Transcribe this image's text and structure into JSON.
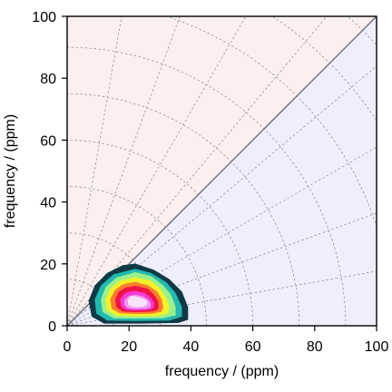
{
  "chart_data": {
    "type": "contour",
    "xlabel": "frequency / (ppm)",
    "ylabel": "frequency / (ppm)",
    "xlim": [
      0,
      100
    ],
    "ylim": [
      0,
      100
    ],
    "xticks": [
      0,
      20,
      40,
      60,
      80,
      100
    ],
    "yticks": [
      0,
      20,
      40,
      60,
      80,
      100
    ],
    "background": {
      "upper_left": "#fbeff0",
      "lower_right": "#eeeefc"
    },
    "diagonal_color": "#77707f",
    "polar_grid": {
      "radii": [
        15,
        30,
        45,
        60,
        75,
        90,
        105,
        120,
        135
      ],
      "angles_deg": [
        10,
        20,
        30,
        40,
        50,
        60,
        70,
        80
      ]
    },
    "contours": [
      {
        "level": 1,
        "color": "#0f3a46",
        "points": [
          [
            22,
            20
          ],
          [
            28,
            18
          ],
          [
            33,
            15
          ],
          [
            37,
            11
          ],
          [
            39,
            6
          ],
          [
            39,
            2
          ],
          [
            36,
            1
          ],
          [
            24,
            0.8
          ],
          [
            12,
            0.8
          ],
          [
            8,
            3
          ],
          [
            7,
            8
          ],
          [
            9,
            13
          ],
          [
            13,
            17
          ],
          [
            18,
            19.5
          ]
        ]
      },
      {
        "level": 2,
        "color": "#22b9b0",
        "points": [
          [
            22,
            18.3
          ],
          [
            27,
            17
          ],
          [
            32,
            14
          ],
          [
            35,
            10.5
          ],
          [
            37,
            6
          ],
          [
            37,
            3
          ],
          [
            33,
            1.8
          ],
          [
            22,
            1.6
          ],
          [
            13,
            1.8
          ],
          [
            9.5,
            4
          ],
          [
            9,
            8.5
          ],
          [
            11,
            13
          ],
          [
            15,
            16.5
          ]
        ]
      },
      {
        "level": 3,
        "color": "#9bf08c",
        "points": [
          [
            22,
            17.2
          ],
          [
            27,
            16
          ],
          [
            31,
            13
          ],
          [
            33.5,
            10
          ],
          [
            35,
            6
          ],
          [
            35,
            3.5
          ],
          [
            31,
            2.5
          ],
          [
            22,
            2.4
          ],
          [
            15,
            2.5
          ],
          [
            11.5,
            4.5
          ],
          [
            11,
            8.5
          ],
          [
            12.5,
            12.5
          ],
          [
            16,
            15.5
          ]
        ]
      },
      {
        "level": 4,
        "color": "#f2f229",
        "points": [
          [
            22,
            15.6
          ],
          [
            27,
            14.5
          ],
          [
            30,
            12
          ],
          [
            32,
            9
          ],
          [
            33,
            6
          ],
          [
            32.5,
            4
          ],
          [
            29,
            3.2
          ],
          [
            22,
            3.1
          ],
          [
            16,
            3.3
          ],
          [
            13,
            5
          ],
          [
            12.5,
            8.5
          ],
          [
            14,
            12
          ],
          [
            17,
            14.5
          ]
        ]
      },
      {
        "level": 5,
        "color": "#fe7c2c",
        "points": [
          [
            22,
            14.1
          ],
          [
            26,
            13
          ],
          [
            29,
            11
          ],
          [
            30.5,
            8.5
          ],
          [
            31,
            6
          ],
          [
            30.5,
            4.6
          ],
          [
            27.5,
            4
          ],
          [
            22,
            3.9
          ],
          [
            17,
            4.1
          ],
          [
            14.5,
            5.5
          ],
          [
            14,
            8.5
          ],
          [
            15.5,
            11.5
          ],
          [
            18,
            13.3
          ]
        ]
      },
      {
        "level": 6,
        "color": "#ef1245",
        "points": [
          [
            22,
            12.8
          ],
          [
            26,
            11.9
          ],
          [
            28,
            10
          ],
          [
            29.3,
            8
          ],
          [
            29.5,
            6
          ],
          [
            29,
            5
          ],
          [
            26.5,
            4.6
          ],
          [
            22,
            4.5
          ],
          [
            18,
            4.7
          ],
          [
            16,
            6
          ],
          [
            15.6,
            8.5
          ],
          [
            16.8,
            11
          ],
          [
            19,
            12.3
          ]
        ]
      },
      {
        "level": 7,
        "color": "#f23ad5",
        "points": [
          [
            22,
            11.2
          ],
          [
            25,
            10.5
          ],
          [
            27,
            9
          ],
          [
            28,
            7.5
          ],
          [
            28,
            6
          ],
          [
            27,
            5.3
          ],
          [
            25,
            5.1
          ],
          [
            22,
            5
          ],
          [
            19,
            5.2
          ],
          [
            17.5,
            6.3
          ],
          [
            17.2,
            8.5
          ],
          [
            18.5,
            10.3
          ],
          [
            20,
            10.9
          ]
        ]
      },
      {
        "level": 8,
        "color": "#ef9af2",
        "points": [
          [
            22,
            10
          ],
          [
            24.5,
            9.4
          ],
          [
            26.3,
            8.2
          ],
          [
            27,
            7
          ],
          [
            26.8,
            6
          ],
          [
            25.5,
            5.6
          ],
          [
            22,
            5.5
          ],
          [
            19.5,
            5.8
          ],
          [
            18.5,
            6.8
          ],
          [
            18.7,
            8.5
          ],
          [
            20,
            9.5
          ]
        ]
      },
      {
        "level": 9,
        "color": "#f8e1fa",
        "points": [
          [
            21,
            9.6
          ],
          [
            23.5,
            9.1
          ],
          [
            25.5,
            8.2
          ],
          [
            25.9,
            7
          ],
          [
            24.5,
            6.2
          ],
          [
            21.5,
            6.1
          ],
          [
            19.8,
            6.8
          ],
          [
            19.7,
            8.2
          ],
          [
            20.2,
            9.2
          ]
        ]
      }
    ]
  }
}
